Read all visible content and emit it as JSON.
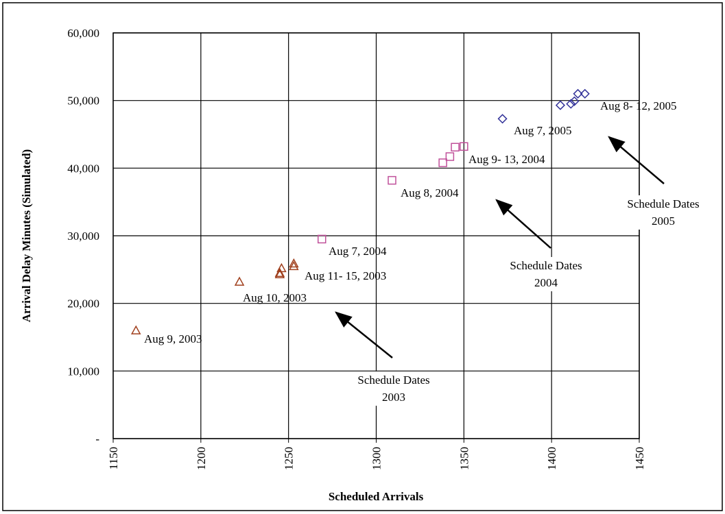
{
  "chart_data": {
    "type": "scatter",
    "xlabel": "Scheduled Arrivals",
    "ylabel": "Arrival Delay Minutes (Simulated)",
    "xlim": [
      1150,
      1450
    ],
    "xticks": [
      1150,
      1200,
      1250,
      1300,
      1350,
      1400,
      1450
    ],
    "ylim": [
      0,
      60000
    ],
    "yticks": [
      {
        "value": 0,
        "label": "-"
      },
      {
        "value": 10000,
        "label": "10,000"
      },
      {
        "value": 20000,
        "label": "20,000"
      },
      {
        "value": 30000,
        "label": "30,000"
      },
      {
        "value": 40000,
        "label": "40,000"
      },
      {
        "value": 50000,
        "label": "50,000"
      },
      {
        "value": 60000,
        "label": "60,000"
      }
    ],
    "grid": true,
    "series": [
      {
        "color": "#a0401e",
        "marker": "triangle",
        "x": [
          1163,
          1222,
          1245,
          1245,
          1246,
          1253,
          1253
        ],
        "values": [
          16000,
          23200,
          24300,
          24500,
          25200,
          25500,
          25900
        ]
      },
      {
        "color": "#c0509a",
        "marker": "square",
        "x": [
          1269,
          1309,
          1338,
          1342,
          1345,
          1350
        ],
        "values": [
          29500,
          38200,
          40800,
          41700,
          43100,
          43200
        ]
      },
      {
        "color": "#333399",
        "marker": "diamond",
        "x": [
          1372,
          1405,
          1411,
          1413,
          1415,
          1419
        ],
        "values": [
          47300,
          49300,
          49500,
          49900,
          51000,
          51000
        ]
      }
    ],
    "annotations": [
      "Aug 9, 2003",
      "Aug 10, 2003",
      "Aug 11- 15, 2003",
      "Aug 7, 2004",
      "Aug 8, 2004",
      "Aug 9- 13, 2004",
      "Aug 7, 2005",
      "Aug 8- 12, 2005"
    ],
    "callouts": [
      [
        "Schedule Dates",
        "2003"
      ],
      [
        "Schedule Dates",
        "2004"
      ],
      [
        "Schedule Dates",
        "2005"
      ]
    ]
  }
}
